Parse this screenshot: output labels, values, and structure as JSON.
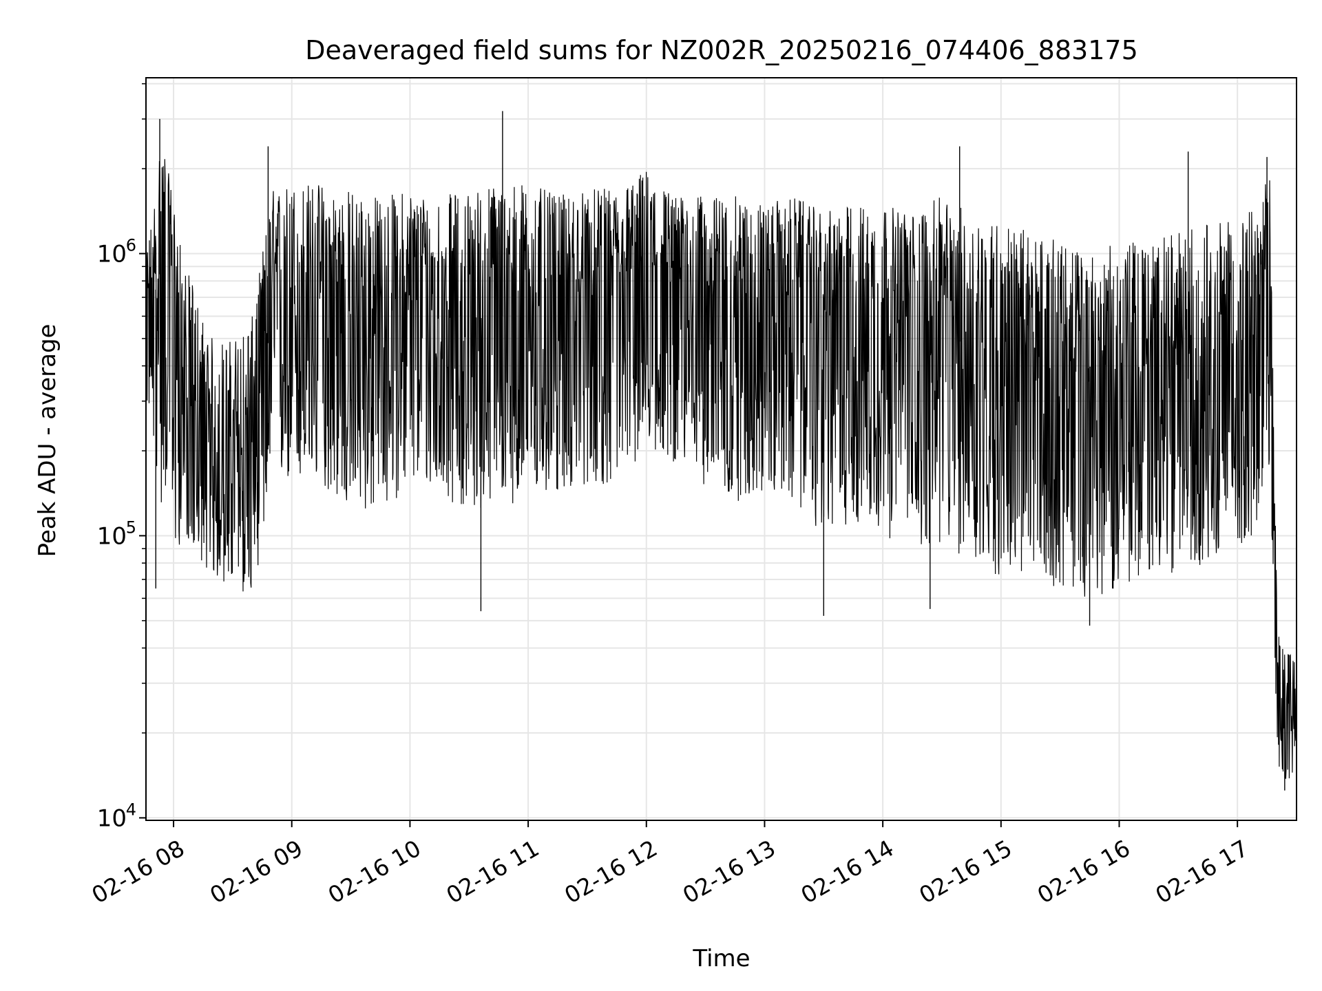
{
  "chart_data": {
    "type": "line",
    "title": "Deaveraged field sums for NZ002R_20250216_074406_883175",
    "xlabel": "Time",
    "ylabel": "Peak ADU - average",
    "yscale": "log",
    "ylim": [
      9800,
      4200000
    ],
    "y_tick_values": [
      10000,
      100000,
      1000000
    ],
    "y_tick_labels": [
      {
        "base": "10",
        "exp": "4"
      },
      {
        "base": "10",
        "exp": "5"
      },
      {
        "base": "10",
        "exp": "6"
      }
    ],
    "xlim": [
      "2025-02-16 07:46",
      "2025-02-16 17:30"
    ],
    "x_ticks": [
      {
        "time": "2025-02-16 08:00",
        "label": "02-16 08"
      },
      {
        "time": "2025-02-16 09:00",
        "label": "02-16 09"
      },
      {
        "time": "2025-02-16 10:00",
        "label": "02-16 10"
      },
      {
        "time": "2025-02-16 11:00",
        "label": "02-16 11"
      },
      {
        "time": "2025-02-16 12:00",
        "label": "02-16 12"
      },
      {
        "time": "2025-02-16 13:00",
        "label": "02-16 13"
      },
      {
        "time": "2025-02-16 14:00",
        "label": "02-16 14"
      },
      {
        "time": "2025-02-16 15:00",
        "label": "02-16 15"
      },
      {
        "time": "2025-02-16 16:00",
        "label": "02-16 16"
      },
      {
        "time": "2025-02-16 17:00",
        "label": "02-16 17"
      }
    ],
    "grid": true,
    "line_color": "#000000",
    "grid_color": "#e6e6e6",
    "series": [
      {
        "x": [
          "2025-02-16 07:46",
          "2025-02-16 07:50",
          "2025-02-16 07:54",
          "2025-02-16 07:57",
          "2025-02-16 08:00",
          "2025-02-16 08:05",
          "2025-02-16 08:10",
          "2025-02-16 08:15",
          "2025-02-16 08:20",
          "2025-02-16 08:30",
          "2025-02-16 08:40",
          "2025-02-16 08:50",
          "2025-02-16 09:00",
          "2025-02-16 09:15",
          "2025-02-16 09:30",
          "2025-02-16 09:45",
          "2025-02-16 10:00",
          "2025-02-16 10:15",
          "2025-02-16 10:30",
          "2025-02-16 10:45",
          "2025-02-16 11:00",
          "2025-02-16 11:15",
          "2025-02-16 11:30",
          "2025-02-16 11:45",
          "2025-02-16 12:00",
          "2025-02-16 12:15",
          "2025-02-16 12:30",
          "2025-02-16 12:45",
          "2025-02-16 13:00",
          "2025-02-16 13:15",
          "2025-02-16 13:30",
          "2025-02-16 13:45",
          "2025-02-16 14:00",
          "2025-02-16 14:15",
          "2025-02-16 14:30",
          "2025-02-16 14:45",
          "2025-02-16 15:00",
          "2025-02-16 15:15",
          "2025-02-16 15:30",
          "2025-02-16 15:45",
          "2025-02-16 16:00",
          "2025-02-16 16:15",
          "2025-02-16 16:30",
          "2025-02-16 16:45",
          "2025-02-16 17:00",
          "2025-02-16 17:10",
          "2025-02-16 17:17",
          "2025-02-16 17:20",
          "2025-02-16 17:25",
          "2025-02-16 17:30"
        ],
        "mid": [
          600000,
          700000,
          900000,
          800000,
          700000,
          350000,
          200000,
          170000,
          150000,
          180000,
          200000,
          600000,
          600000,
          600000,
          500000,
          500000,
          650000,
          600000,
          500000,
          600000,
          600000,
          600000,
          700000,
          700000,
          800000,
          750000,
          700000,
          650000,
          700000,
          650000,
          550000,
          600000,
          550000,
          500000,
          550000,
          450000,
          400000,
          380000,
          350000,
          300000,
          320000,
          330000,
          350000,
          380000,
          400000,
          450000,
          600000,
          30000,
          25000,
          25000
        ],
        "upper": [
          1000000,
          1500000,
          2900000,
          2000000,
          1600000,
          900000,
          800000,
          600000,
          500000,
          500000,
          600000,
          1700000,
          1800000,
          1800000,
          1700000,
          1600000,
          1700000,
          1600000,
          1700000,
          1800000,
          1800000,
          1600000,
          1700000,
          1700000,
          2000000,
          1600000,
          1600000,
          1600000,
          1500000,
          1600000,
          1400000,
          1500000,
          1500000,
          1400000,
          1600000,
          1400000,
          1300000,
          1200000,
          1100000,
          1000000,
          1100000,
          1100000,
          1200000,
          1300000,
          1300000,
          1500000,
          2000000,
          60000,
          40000,
          35000
        ],
        "lower": [
          300000,
          200000,
          120000,
          150000,
          80000,
          100000,
          90000,
          80000,
          70000,
          65000,
          60000,
          150000,
          150000,
          150000,
          120000,
          120000,
          150000,
          140000,
          120000,
          130000,
          130000,
          140000,
          150000,
          150000,
          200000,
          180000,
          150000,
          130000,
          140000,
          130000,
          100000,
          110000,
          100000,
          90000,
          90000,
          80000,
          70000,
          70000,
          65000,
          60000,
          65000,
          70000,
          75000,
          80000,
          90000,
          100000,
          150000,
          15000,
          13000,
          15000
        ],
        "spikes": [
          {
            "time": "2025-02-16 07:53",
            "value": 3000000
          },
          {
            "time": "2025-02-16 08:48",
            "value": 2400000
          },
          {
            "time": "2025-02-16 10:47",
            "value": 3200000
          },
          {
            "time": "2025-02-16 14:39",
            "value": 2400000
          },
          {
            "time": "2025-02-16 16:35",
            "value": 2300000
          },
          {
            "time": "2025-02-16 17:15",
            "value": 2200000
          },
          {
            "time": "2025-02-16 07:51",
            "value": 65000
          },
          {
            "time": "2025-02-16 10:36",
            "value": 54000
          },
          {
            "time": "2025-02-16 13:30",
            "value": 52000
          },
          {
            "time": "2025-02-16 14:24",
            "value": 55000
          },
          {
            "time": "2025-02-16 15:45",
            "value": 48000
          },
          {
            "time": "2025-02-16 17:24",
            "value": 12500
          }
        ]
      }
    ]
  }
}
